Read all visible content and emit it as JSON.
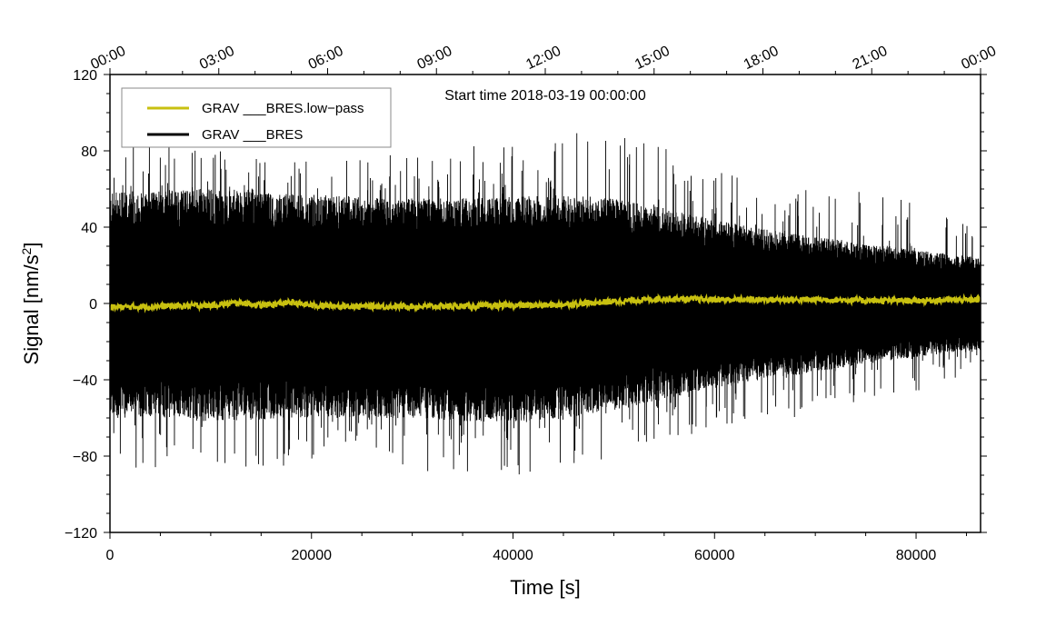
{
  "chart_data": {
    "type": "line",
    "title": "",
    "annotation": "Start time 2018-03-19 00:00:00",
    "xlabel": "Time [s]",
    "ylabel_main": "Signal [nm/s",
    "ylabel_sup": "2",
    "ylabel_end": "]",
    "xlim": [
      0,
      86400
    ],
    "ylim": [
      -120,
      120
    ],
    "xticks": [
      0,
      20000,
      40000,
      60000,
      80000
    ],
    "xtick_labels": [
      "0",
      "20000",
      "40000",
      "60000",
      "80000"
    ],
    "yticks": [
      -120,
      -80,
      -40,
      0,
      40,
      80,
      120
    ],
    "ytick_labels": [
      "−120",
      "−80",
      "−40",
      "0",
      "40",
      "80",
      "120"
    ],
    "top_axis_ticks": [
      0,
      10800,
      21600,
      32400,
      43200,
      54000,
      64800,
      75600,
      86400
    ],
    "top_axis_labels": [
      "00:00",
      "03:00",
      "06:00",
      "09:00",
      "12:00",
      "15:00",
      "18:00",
      "21:00",
      "00:00"
    ],
    "legend": {
      "placement": "top-left",
      "entries": [
        {
          "label": "GRAV ___BRES.low−pass",
          "color": "#c8c010"
        },
        {
          "label": "GRAV ___BRES",
          "color": "#000000"
        }
      ]
    },
    "series": [
      {
        "name": "GRAV ___BRES",
        "color": "#000000",
        "envelope_x": [
          0,
          5000,
          10000,
          15000,
          20000,
          25000,
          30000,
          35000,
          40000,
          45000,
          50000,
          55000,
          60000,
          65000,
          70000,
          75000,
          80000,
          86400
        ],
        "envelope_upper": [
          58,
          60,
          60,
          58,
          57,
          56,
          55,
          55,
          56,
          57,
          55,
          50,
          44,
          39,
          35,
          32,
          28,
          24
        ],
        "envelope_lower": [
          -60,
          -60,
          -62,
          -61,
          -60,
          -60,
          -60,
          -62,
          -62,
          -61,
          -56,
          -50,
          -45,
          -40,
          -36,
          -32,
          -28,
          -24
        ],
        "spike_max": [
          85,
          88,
          82,
          80,
          78,
          76,
          80,
          82,
          84,
          91,
          88,
          82,
          72,
          64,
          60,
          60,
          52,
          42
        ],
        "spike_min": [
          -92,
          -86,
          -84,
          -87,
          -85,
          -82,
          -88,
          -90,
          -90,
          -94,
          -80,
          -72,
          -66,
          -62,
          -58,
          -52,
          -46,
          -38
        ]
      },
      {
        "name": "GRAV ___BRES.low−pass",
        "color": "#c8c010",
        "x": [
          0,
          5000,
          10000,
          13000,
          15000,
          18000,
          20000,
          25000,
          30000,
          35000,
          40000,
          43000,
          45000,
          50000,
          55000,
          60000,
          65000,
          70000,
          72000,
          75000,
          80000,
          86400
        ],
        "y": [
          -2,
          -1.5,
          -1,
          0.5,
          -1,
          0.5,
          -1,
          -1.5,
          -1.5,
          -1.5,
          -1,
          -1,
          -0.5,
          1,
          2.5,
          2,
          2,
          2,
          2,
          1.5,
          1.5,
          2
        ]
      }
    ]
  }
}
